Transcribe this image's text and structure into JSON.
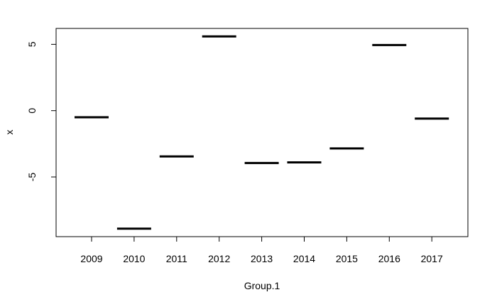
{
  "chart_data": {
    "type": "scatter",
    "mark": "horizontal-segment",
    "categories": [
      "2009",
      "2010",
      "2011",
      "2012",
      "2013",
      "2014",
      "2015",
      "2016",
      "2017"
    ],
    "values": [
      -0.5,
      -8.9,
      -3.45,
      5.6,
      -3.95,
      -3.9,
      -2.85,
      4.95,
      -0.6
    ],
    "xlabel": "Group.1",
    "ylabel": "x",
    "ylim": [
      -9.5,
      6.2
    ],
    "yticks": [
      -5,
      0,
      5
    ],
    "grid": false,
    "legend": "none"
  }
}
